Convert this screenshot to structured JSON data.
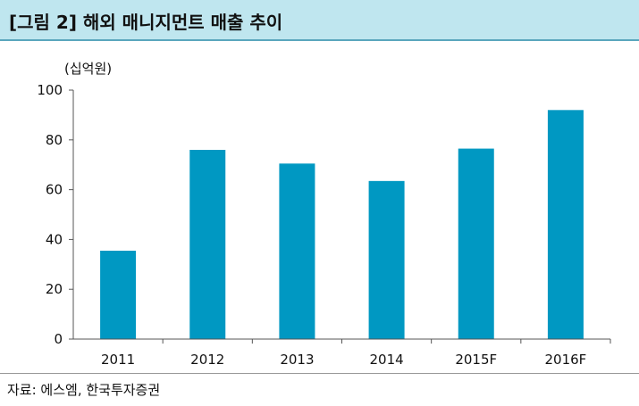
{
  "header": {
    "title": "[그림 2] 해외 매니지먼트 매출 추이"
  },
  "footer": {
    "source": "자료: 에스엠, 한국투자증권"
  },
  "colors": {
    "bar": "#0098c2",
    "title_bg": "#bfe6ef",
    "title_border": "#5aa6bd",
    "axis": "#555555"
  },
  "chart_data": {
    "type": "bar",
    "unit_label": "(십억원)",
    "categories": [
      "2011",
      "2012",
      "2013",
      "2014",
      "2015F",
      "2016F"
    ],
    "values": [
      35.5,
      76,
      70.5,
      63.5,
      76.5,
      92
    ],
    "ylim": [
      0,
      100
    ],
    "yticks": [
      "0",
      "20",
      "40",
      "60",
      "80",
      "100"
    ],
    "grid": false,
    "legend": "none"
  }
}
